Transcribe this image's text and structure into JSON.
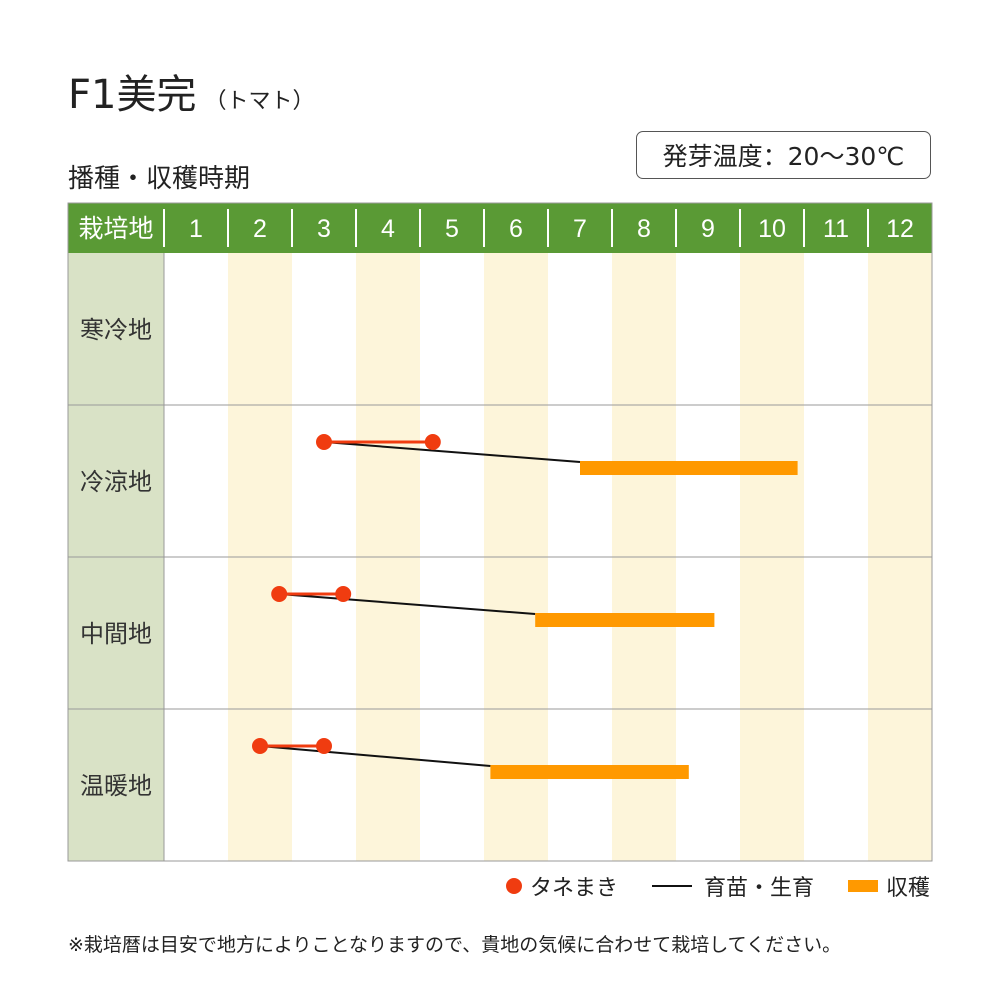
{
  "header": {
    "title": "F1美完",
    "title_sub": "（トマト）",
    "subtitle": "播種・収穫時期",
    "germination": "発芽温度：20〜30℃"
  },
  "colors": {
    "header_green": "#5a9a35",
    "row_label_bg": "#d9e2c6",
    "stripe": "#fdf5da",
    "sowing": "#f03c10",
    "seedling": "#111111",
    "harvest": "#ff9900",
    "grid": "#999999"
  },
  "chart_data": {
    "type": "gantt",
    "corner_label": "栽培地",
    "x_unit": "month",
    "categories": [
      "1",
      "2",
      "3",
      "4",
      "5",
      "6",
      "7",
      "8",
      "9",
      "10",
      "11",
      "12"
    ],
    "xlim": [
      1,
      13
    ],
    "rows": [
      {
        "label": "寒冷地",
        "sowing": [],
        "harvest": []
      },
      {
        "label": "冷涼地",
        "sowing": [
          3.5,
          5.2
        ],
        "harvest": [
          7.5,
          10.9
        ]
      },
      {
        "label": "中間地",
        "sowing": [
          2.8,
          3.8
        ],
        "harvest": [
          6.8,
          9.6
        ]
      },
      {
        "label": "温暖地",
        "sowing": [
          2.5,
          3.5
        ],
        "harvest": [
          6.1,
          9.2
        ]
      }
    ],
    "legend": [
      {
        "key": "sowing",
        "label": "タネまき",
        "icon": "dot"
      },
      {
        "key": "seedling",
        "label": "育苗・生育",
        "icon": "line"
      },
      {
        "key": "harvest",
        "label": "収穫",
        "icon": "bar"
      }
    ],
    "legend_position": "bottom-right"
  },
  "footnote": "※栽培暦は目安で地方によりことなりますので、貴地の気候に合わせて栽培してください。"
}
